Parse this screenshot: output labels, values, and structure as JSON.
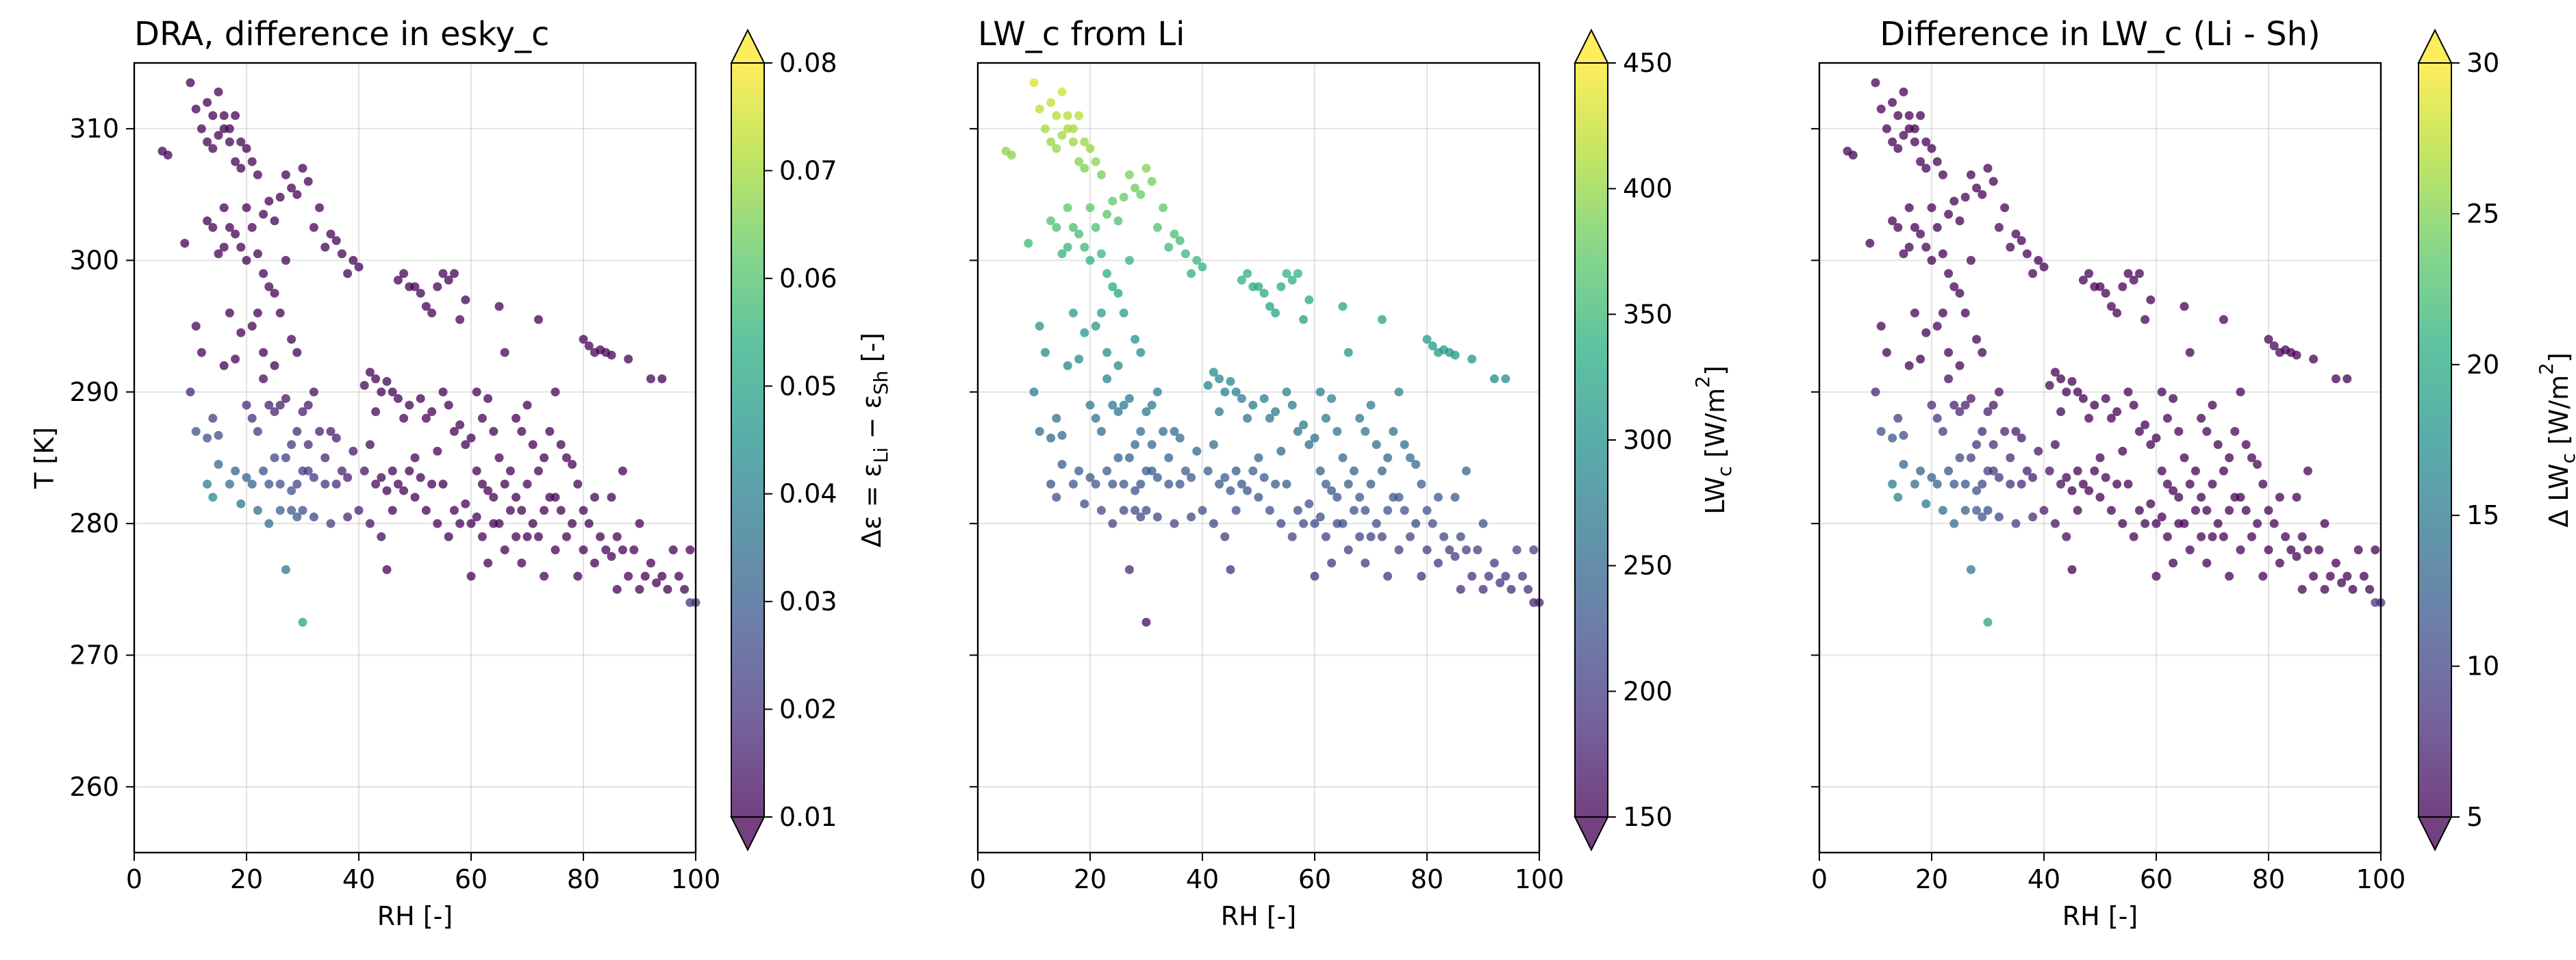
{
  "colormap": [
    "#440154",
    "#472d7b",
    "#3b528b",
    "#2c728e",
    "#21918c",
    "#28ae80",
    "#5ec962",
    "#addc30",
    "#fde725"
  ],
  "chart_data": [
    {
      "type": "scatter",
      "title": "DRA, difference in esky_c",
      "xlabel": "RH [-]",
      "ylabel": "T [K]",
      "xlim": [
        0,
        100
      ],
      "ylim": [
        255,
        315
      ],
      "xticks": [
        "0",
        "20",
        "40",
        "60",
        "80",
        "100"
      ],
      "yticks": [
        "260",
        "270",
        "280",
        "290",
        "300",
        "310"
      ],
      "grid": true,
      "colorbar": {
        "label_main": "Δε = ε",
        "label_sub1": "Li",
        "label_mid": " − ε",
        "label_sub2": "Sh",
        "label_end": " [-]",
        "range": [
          0.01,
          0.08
        ],
        "ticks": [
          "0.01",
          "0.02",
          "0.03",
          "0.04",
          "0.05",
          "0.06",
          "0.07",
          "0.08"
        ],
        "extend": "both"
      }
    },
    {
      "type": "scatter",
      "title": "LW_c from Li",
      "xlabel": "RH [-]",
      "ylabel": "",
      "xlim": [
        0,
        100
      ],
      "ylim": [
        255,
        315
      ],
      "xticks": [
        "0",
        "20",
        "40",
        "60",
        "80",
        "100"
      ],
      "yticks": [],
      "grid": true,
      "colorbar": {
        "label_main": "LW",
        "label_sub1": "c",
        "label_mid": " [W/m",
        "label_sub2": "2",
        "label_end": "]",
        "range": [
          150,
          450
        ],
        "ticks": [
          "150",
          "200",
          "250",
          "300",
          "350",
          "400",
          "450"
        ],
        "extend": "both"
      }
    },
    {
      "type": "scatter",
      "title": "Difference in LW_c (Li - Sh)",
      "xlabel": "RH [-]",
      "ylabel": "",
      "xlim": [
        0,
        100
      ],
      "ylim": [
        255,
        315
      ],
      "xticks": [
        "0",
        "20",
        "40",
        "60",
        "80",
        "100"
      ],
      "yticks": [],
      "grid": true,
      "colorbar": {
        "label_main": "Δ LW",
        "label_sub1": "c",
        "label_mid": " [W/m",
        "label_sub2": "2",
        "label_end": "]",
        "range": [
          5,
          30
        ],
        "ticks": [
          "5",
          "10",
          "15",
          "20",
          "25",
          "30"
        ],
        "extend": "both"
      }
    }
  ],
  "points": [
    [
      5,
      308.3
    ],
    [
      6,
      308
    ],
    [
      9,
      301.3
    ],
    [
      10,
      313.5
    ],
    [
      10,
      290
    ],
    [
      11,
      311.5
    ],
    [
      11,
      295
    ],
    [
      11,
      287
    ],
    [
      12,
      310
    ],
    [
      12,
      293
    ],
    [
      13,
      312
    ],
    [
      13,
      309
    ],
    [
      13,
      303
    ],
    [
      13,
      286.5
    ],
    [
      13,
      283
    ],
    [
      14,
      311
    ],
    [
      14,
      308.5
    ],
    [
      14,
      302.5
    ],
    [
      14,
      288
    ],
    [
      14,
      282
    ],
    [
      15,
      312.8
    ],
    [
      15,
      309.5
    ],
    [
      15,
      300.5
    ],
    [
      15,
      286.7
    ],
    [
      15,
      284.5
    ],
    [
      16,
      311
    ],
    [
      16,
      310
    ],
    [
      16,
      304
    ],
    [
      16,
      301
    ],
    [
      16,
      292
    ],
    [
      17,
      310
    ],
    [
      17,
      309
    ],
    [
      17,
      302.5
    ],
    [
      17,
      296
    ],
    [
      17,
      283
    ],
    [
      18,
      311
    ],
    [
      18,
      307.5
    ],
    [
      18,
      302
    ],
    [
      18,
      292.5
    ],
    [
      18,
      284
    ],
    [
      19,
      309
    ],
    [
      19,
      307
    ],
    [
      19,
      301
    ],
    [
      19,
      294.5
    ],
    [
      19,
      281.5
    ],
    [
      20,
      308.5
    ],
    [
      20,
      304
    ],
    [
      20,
      300
    ],
    [
      20,
      289
    ],
    [
      20,
      283.5
    ],
    [
      21,
      307.5
    ],
    [
      21,
      302.5
    ],
    [
      21,
      295
    ],
    [
      21,
      288
    ],
    [
      21,
      283
    ],
    [
      22,
      306.5
    ],
    [
      22,
      300.5
    ],
    [
      22,
      296
    ],
    [
      22,
      287
    ],
    [
      22,
      281
    ],
    [
      23,
      303.5
    ],
    [
      23,
      299
    ],
    [
      23,
      293
    ],
    [
      23,
      291
    ],
    [
      23,
      284
    ],
    [
      24,
      304.5
    ],
    [
      24,
      298
    ],
    [
      24,
      289
    ],
    [
      24,
      283
    ],
    [
      24,
      280
    ],
    [
      25,
      303
    ],
    [
      25,
      297.5
    ],
    [
      25,
      292
    ],
    [
      25,
      288.5
    ],
    [
      25,
      285
    ],
    [
      26,
      304.8
    ],
    [
      26,
      296
    ],
    [
      26,
      289
    ],
    [
      26,
      283
    ],
    [
      26,
      281
    ],
    [
      27,
      306.5
    ],
    [
      27,
      300
    ],
    [
      27,
      289.5
    ],
    [
      27,
      285
    ],
    [
      27,
      276.5
    ],
    [
      28,
      305.5
    ],
    [
      28,
      294
    ],
    [
      28,
      286
    ],
    [
      28,
      282.5
    ],
    [
      28,
      281
    ],
    [
      29,
      305
    ],
    [
      29,
      293
    ],
    [
      29,
      287
    ],
    [
      29,
      283
    ],
    [
      29,
      280.5
    ],
    [
      30,
      307
    ],
    [
      30,
      288.5
    ],
    [
      30,
      284
    ],
    [
      30,
      281
    ],
    [
      30,
      272.5
    ],
    [
      31,
      306
    ],
    [
      31,
      289
    ],
    [
      31,
      286
    ],
    [
      31,
      284
    ],
    [
      32,
      302.5
    ],
    [
      32,
      290
    ],
    [
      32,
      283.5
    ],
    [
      32,
      280.5
    ],
    [
      33,
      304
    ],
    [
      33,
      287
    ],
    [
      34,
      301
    ],
    [
      34,
      285
    ],
    [
      34,
      283
    ],
    [
      35,
      302
    ],
    [
      35,
      287
    ],
    [
      35,
      280
    ],
    [
      36,
      301.5
    ],
    [
      36,
      286.5
    ],
    [
      36,
      283
    ],
    [
      37,
      300.5
    ],
    [
      37,
      284
    ],
    [
      38,
      299
    ],
    [
      38,
      283.5
    ],
    [
      38,
      280.5
    ],
    [
      39,
      300
    ],
    [
      39,
      285.5
    ],
    [
      40,
      299.5
    ],
    [
      40,
      281
    ],
    [
      41,
      290.5
    ],
    [
      41,
      284
    ],
    [
      42,
      291.5
    ],
    [
      42,
      286
    ],
    [
      42,
      280
    ],
    [
      43,
      291
    ],
    [
      43,
      288.5
    ],
    [
      43,
      283
    ],
    [
      44,
      290
    ],
    [
      44,
      283.5
    ],
    [
      44,
      279
    ],
    [
      45,
      290.8
    ],
    [
      45,
      282.5
    ],
    [
      45,
      276.5
    ],
    [
      46,
      290
    ],
    [
      46,
      284
    ],
    [
      46,
      281
    ],
    [
      47,
      298.5
    ],
    [
      47,
      289.5
    ],
    [
      47,
      283
    ],
    [
      48,
      299
    ],
    [
      48,
      288
    ],
    [
      48,
      282.5
    ],
    [
      49,
      298
    ],
    [
      49,
      289
    ],
    [
      49,
      284
    ],
    [
      50,
      298
    ],
    [
      50,
      285
    ],
    [
      50,
      282
    ],
    [
      51,
      297.5
    ],
    [
      51,
      289.5
    ],
    [
      51,
      283.5
    ],
    [
      52,
      296.5
    ],
    [
      52,
      288
    ],
    [
      52,
      281
    ],
    [
      53,
      296
    ],
    [
      53,
      288.5
    ],
    [
      53,
      283
    ],
    [
      54,
      298
    ],
    [
      54,
      285.5
    ],
    [
      54,
      280
    ],
    [
      55,
      299
    ],
    [
      55,
      290
    ],
    [
      55,
      283
    ],
    [
      56,
      298.5
    ],
    [
      56,
      289
    ],
    [
      56,
      279
    ],
    [
      57,
      299
    ],
    [
      57,
      287
    ],
    [
      57,
      281
    ],
    [
      58,
      295.5
    ],
    [
      58,
      287.5
    ],
    [
      58,
      280
    ],
    [
      59,
      297
    ],
    [
      59,
      286
    ],
    [
      59,
      281.5
    ],
    [
      60,
      286.5
    ],
    [
      60,
      280
    ],
    [
      60,
      276
    ],
    [
      61,
      290
    ],
    [
      61,
      284
    ],
    [
      61,
      280.5
    ],
    [
      62,
      288
    ],
    [
      62,
      283
    ],
    [
      62,
      279
    ],
    [
      63,
      289.5
    ],
    [
      63,
      282.5
    ],
    [
      63,
      277
    ],
    [
      64,
      287
    ],
    [
      64,
      282
    ],
    [
      64,
      280
    ],
    [
      65,
      296.5
    ],
    [
      65,
      285
    ],
    [
      65,
      280
    ],
    [
      66,
      293
    ],
    [
      66,
      283
    ],
    [
      66,
      278
    ],
    [
      67,
      284
    ],
    [
      67,
      281
    ],
    [
      68,
      288
    ],
    [
      68,
      282
    ],
    [
      68,
      279
    ],
    [
      69,
      287
    ],
    [
      69,
      281
    ],
    [
      69,
      277
    ],
    [
      70,
      289
    ],
    [
      70,
      283
    ],
    [
      70,
      279
    ],
    [
      71,
      286
    ],
    [
      71,
      280
    ],
    [
      72,
      295.5
    ],
    [
      72,
      284
    ],
    [
      72,
      279
    ],
    [
      73,
      285
    ],
    [
      73,
      281
    ],
    [
      73,
      276
    ],
    [
      74,
      287
    ],
    [
      74,
      282
    ],
    [
      75,
      290
    ],
    [
      75,
      282
    ],
    [
      75,
      278
    ],
    [
      76,
      286
    ],
    [
      76,
      281
    ],
    [
      77,
      285
    ],
    [
      77,
      279
    ],
    [
      78,
      284.5
    ],
    [
      78,
      280
    ],
    [
      79,
      283
    ],
    [
      79,
      276
    ],
    [
      80,
      294
    ],
    [
      80,
      281
    ],
    [
      80,
      278
    ],
    [
      81,
      293.5
    ],
    [
      81,
      280
    ],
    [
      82,
      293
    ],
    [
      82,
      282
    ],
    [
      82,
      277
    ],
    [
      83,
      293.2
    ],
    [
      83,
      279
    ],
    [
      84,
      293
    ],
    [
      84,
      278
    ],
    [
      85,
      292.8
    ],
    [
      85,
      282
    ],
    [
      85,
      277.5
    ],
    [
      86,
      279
    ],
    [
      86,
      275
    ],
    [
      87,
      284
    ],
    [
      87,
      278
    ],
    [
      88,
      292.5
    ],
    [
      88,
      276
    ],
    [
      89,
      278
    ],
    [
      90,
      280
    ],
    [
      90,
      275
    ],
    [
      91,
      276
    ],
    [
      92,
      291
    ],
    [
      92,
      277
    ],
    [
      93,
      275.5
    ],
    [
      94,
      291
    ],
    [
      94,
      276
    ],
    [
      95,
      275
    ],
    [
      96,
      278
    ],
    [
      97,
      276
    ],
    [
      98,
      275
    ],
    [
      99,
      278
    ],
    [
      99,
      274
    ],
    [
      100,
      274
    ]
  ]
}
